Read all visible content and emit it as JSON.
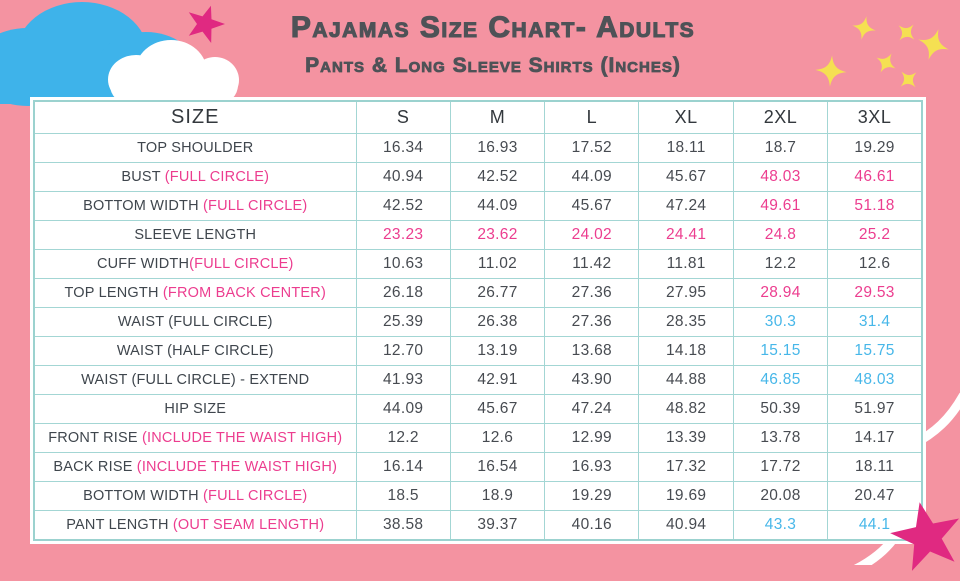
{
  "title": "Pajamas Size Chart- Adults",
  "subtitle": "Pants & Long Sleeve Shirts (Inches)",
  "colors": {
    "background_pink": "#F493A1",
    "cloud_blue": "#3EB3EA",
    "cloud_white": "#FFFFFF",
    "star_magenta": "#E02981",
    "star_yellow": "#F5E052",
    "table_border_teal": "#A3D6D4",
    "text_dark": "#474B51",
    "accent_pink": "#EC3D8F",
    "accent_blue": "#47B7E9"
  },
  "icons": [
    "blue-cloud-icon",
    "white-cloud-icon",
    "magenta-star-icon",
    "yellow-sparkle-icon"
  ],
  "table": {
    "size_header": "SIZE",
    "columns": [
      "S",
      "M",
      "L",
      "XL",
      "2XL",
      "3XL"
    ],
    "rows": [
      {
        "label_main": "TOP SHOULDER",
        "label_accent": "",
        "cells": [
          {
            "v": "16.34",
            "c": "dark"
          },
          {
            "v": "16.93",
            "c": "dark"
          },
          {
            "v": "17.52",
            "c": "dark"
          },
          {
            "v": "18.11",
            "c": "dark"
          },
          {
            "v": "18.7",
            "c": "dark"
          },
          {
            "v": "19.29",
            "c": "dark"
          }
        ]
      },
      {
        "label_main": "BUST ",
        "label_accent": "(FULL CIRCLE)",
        "cells": [
          {
            "v": "40.94",
            "c": "dark"
          },
          {
            "v": "42.52",
            "c": "dark"
          },
          {
            "v": "44.09",
            "c": "dark"
          },
          {
            "v": "45.67",
            "c": "dark"
          },
          {
            "v": "48.03",
            "c": "pink"
          },
          {
            "v": "46.61",
            "c": "pink"
          }
        ]
      },
      {
        "label_main": "BOTTOM WIDTH ",
        "label_accent": "(FULL CIRCLE)",
        "cells": [
          {
            "v": "42.52",
            "c": "dark"
          },
          {
            "v": "44.09",
            "c": "dark"
          },
          {
            "v": "45.67",
            "c": "dark"
          },
          {
            "v": "47.24",
            "c": "dark"
          },
          {
            "v": "49.61",
            "c": "pink"
          },
          {
            "v": "51.18",
            "c": "pink"
          }
        ]
      },
      {
        "label_main": "SLEEVE LENGTH",
        "label_accent": "",
        "cells": [
          {
            "v": "23.23",
            "c": "pink"
          },
          {
            "v": "23.62",
            "c": "pink"
          },
          {
            "v": "24.02",
            "c": "pink"
          },
          {
            "v": "24.41",
            "c": "pink"
          },
          {
            "v": "24.8",
            "c": "pink"
          },
          {
            "v": "25.2",
            "c": "pink"
          }
        ]
      },
      {
        "label_main": "CUFF WIDTH",
        "label_accent": "(FULL CIRCLE)",
        "cells": [
          {
            "v": "10.63",
            "c": "dark"
          },
          {
            "v": "11.02",
            "c": "dark"
          },
          {
            "v": "11.42",
            "c": "dark"
          },
          {
            "v": "11.81",
            "c": "dark"
          },
          {
            "v": "12.2",
            "c": "dark"
          },
          {
            "v": "12.6",
            "c": "dark"
          }
        ]
      },
      {
        "label_main": "TOP LENGTH ",
        "label_accent": "(FROM BACK CENTER)",
        "cells": [
          {
            "v": "26.18",
            "c": "dark"
          },
          {
            "v": "26.77",
            "c": "dark"
          },
          {
            "v": "27.36",
            "c": "dark"
          },
          {
            "v": "27.95",
            "c": "dark"
          },
          {
            "v": "28.94",
            "c": "pink"
          },
          {
            "v": "29.53",
            "c": "pink"
          }
        ]
      },
      {
        "label_main": "WAIST (FULL CIRCLE)",
        "label_accent": "",
        "cells": [
          {
            "v": "25.39",
            "c": "dark"
          },
          {
            "v": "26.38",
            "c": "dark"
          },
          {
            "v": "27.36",
            "c": "dark"
          },
          {
            "v": "28.35",
            "c": "dark"
          },
          {
            "v": "30.3",
            "c": "blue"
          },
          {
            "v": "31.4",
            "c": "blue"
          }
        ]
      },
      {
        "label_main": "WAIST (HALF CIRCLE)",
        "label_accent": "",
        "cells": [
          {
            "v": "12.70",
            "c": "dark"
          },
          {
            "v": "13.19",
            "c": "dark"
          },
          {
            "v": "13.68",
            "c": "dark"
          },
          {
            "v": "14.18",
            "c": "dark"
          },
          {
            "v": "15.15",
            "c": "blue"
          },
          {
            "v": "15.75",
            "c": "blue"
          }
        ]
      },
      {
        "label_main": "WAIST (FULL CIRCLE) - EXTEND",
        "label_accent": "",
        "cells": [
          {
            "v": "41.93",
            "c": "dark"
          },
          {
            "v": "42.91",
            "c": "dark"
          },
          {
            "v": "43.90",
            "c": "dark"
          },
          {
            "v": "44.88",
            "c": "dark"
          },
          {
            "v": "46.85",
            "c": "blue"
          },
          {
            "v": "48.03",
            "c": "blue"
          }
        ]
      },
      {
        "label_main": "HIP SIZE",
        "label_accent": "",
        "cells": [
          {
            "v": "44.09",
            "c": "dark"
          },
          {
            "v": "45.67",
            "c": "dark"
          },
          {
            "v": "47.24",
            "c": "dark"
          },
          {
            "v": "48.82",
            "c": "dark"
          },
          {
            "v": "50.39",
            "c": "dark"
          },
          {
            "v": "51.97",
            "c": "dark"
          }
        ]
      },
      {
        "label_main": "FRONT RISE ",
        "label_accent": "(INCLUDE THE WAIST HIGH)",
        "cells": [
          {
            "v": "12.2",
            "c": "dark"
          },
          {
            "v": "12.6",
            "c": "dark"
          },
          {
            "v": "12.99",
            "c": "dark"
          },
          {
            "v": "13.39",
            "c": "dark"
          },
          {
            "v": "13.78",
            "c": "dark"
          },
          {
            "v": "14.17",
            "c": "dark"
          }
        ]
      },
      {
        "label_main": "BACK RISE ",
        "label_accent": "(INCLUDE THE WAIST HIGH)",
        "cells": [
          {
            "v": "16.14",
            "c": "dark"
          },
          {
            "v": "16.54",
            "c": "dark"
          },
          {
            "v": "16.93",
            "c": "dark"
          },
          {
            "v": "17.32",
            "c": "dark"
          },
          {
            "v": "17.72",
            "c": "dark"
          },
          {
            "v": "18.11",
            "c": "dark"
          }
        ]
      },
      {
        "label_main": "BOTTOM WIDTH ",
        "label_accent": "(FULL CIRCLE)",
        "cells": [
          {
            "v": "18.5",
            "c": "dark"
          },
          {
            "v": "18.9",
            "c": "dark"
          },
          {
            "v": "19.29",
            "c": "dark"
          },
          {
            "v": "19.69",
            "c": "dark"
          },
          {
            "v": "20.08",
            "c": "dark"
          },
          {
            "v": "20.47",
            "c": "dark"
          }
        ]
      },
      {
        "label_main": "PANT LENGTH ",
        "label_accent": "(OUT SEAM LENGTH)",
        "cells": [
          {
            "v": "38.58",
            "c": "dark"
          },
          {
            "v": "39.37",
            "c": "dark"
          },
          {
            "v": "40.16",
            "c": "dark"
          },
          {
            "v": "40.94",
            "c": "dark"
          },
          {
            "v": "43.3",
            "c": "blue"
          },
          {
            "v": "44.1",
            "c": "blue"
          }
        ]
      }
    ]
  }
}
